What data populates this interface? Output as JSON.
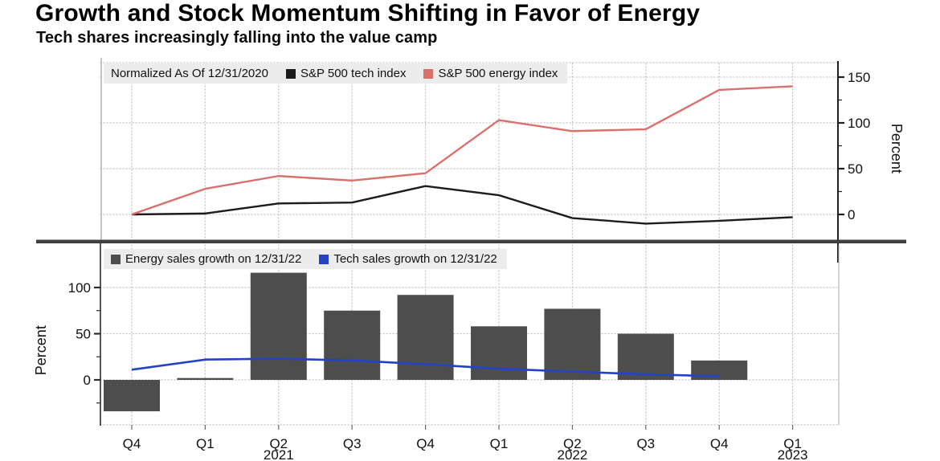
{
  "header": {
    "title": "Growth and Stock Momentum Shifting in Favor of Energy",
    "subtitle": "Tech shares increasingly falling into the value camp"
  },
  "chart_data": [
    {
      "type": "line",
      "panel": "top",
      "note": "Normalized As Of 12/31/2020",
      "categories": [
        "Q4 2020",
        "Q1 2021",
        "Q2 2021",
        "Q3 2021",
        "Q4 2021",
        "Q1 2022",
        "Q2 2022",
        "Q3 2022",
        "Q4 2022",
        "Q1 2023"
      ],
      "series": [
        {
          "name": "S&P 500 tech index",
          "color": "#1c1c1c",
          "values": [
            0,
            1,
            12,
            13,
            31,
            21,
            -4,
            -10,
            -7,
            -3
          ]
        },
        {
          "name": "S&P 500 energy index",
          "color": "#d9706c",
          "values": [
            0,
            28,
            42,
            37,
            45,
            103,
            91,
            93,
            136,
            140
          ]
        }
      ],
      "ylabel": "Percent",
      "yticks": [
        0,
        50,
        100,
        150
      ],
      "yticks_minor": [
        25,
        75,
        125
      ],
      "ylim": [
        -28,
        166
      ],
      "grid": true,
      "legend_position": "top-left",
      "axis_side": "right"
    },
    {
      "type": "bar",
      "panel": "bottom",
      "categories": [
        "Q4 2020",
        "Q1 2021",
        "Q2 2021",
        "Q3 2021",
        "Q4 2021",
        "Q1 2022",
        "Q2 2022",
        "Q3 2022",
        "Q4 2022",
        "Q1 2023"
      ],
      "series": [
        {
          "name": "Energy sales growth on 12/31/22",
          "type": "bar",
          "color": "#4d4d4d",
          "values": [
            -34,
            2,
            116,
            75,
            92,
            58,
            77,
            50,
            21,
            null
          ]
        },
        {
          "name": "Tech sales growth on 12/31/22",
          "type": "line",
          "color": "#2443c4",
          "values": [
            11,
            22,
            23,
            21,
            17,
            12,
            9,
            6,
            4,
            null
          ]
        }
      ],
      "ylabel": "Percent",
      "yticks": [
        0,
        50,
        100
      ],
      "yticks_minor": [
        -25,
        25,
        75
      ],
      "ylim": [
        -52,
        122
      ],
      "x_tick_labels": [
        "Q4",
        "Q1",
        "Q2",
        "Q3",
        "Q4",
        "Q1",
        "Q2",
        "Q3",
        "Q4",
        "Q1"
      ],
      "year_labels": [
        {
          "text": "2021",
          "tick_index": 2
        },
        {
          "text": "2022",
          "tick_index": 6
        },
        {
          "text": "2023",
          "tick_index": 9
        }
      ],
      "grid": true,
      "legend_position": "top-left",
      "axis_side": "left"
    }
  ],
  "styles": {
    "separator_color": "#3f3f3f",
    "grid_color": "#c4c4c4",
    "legend_bg": "#ececec"
  }
}
